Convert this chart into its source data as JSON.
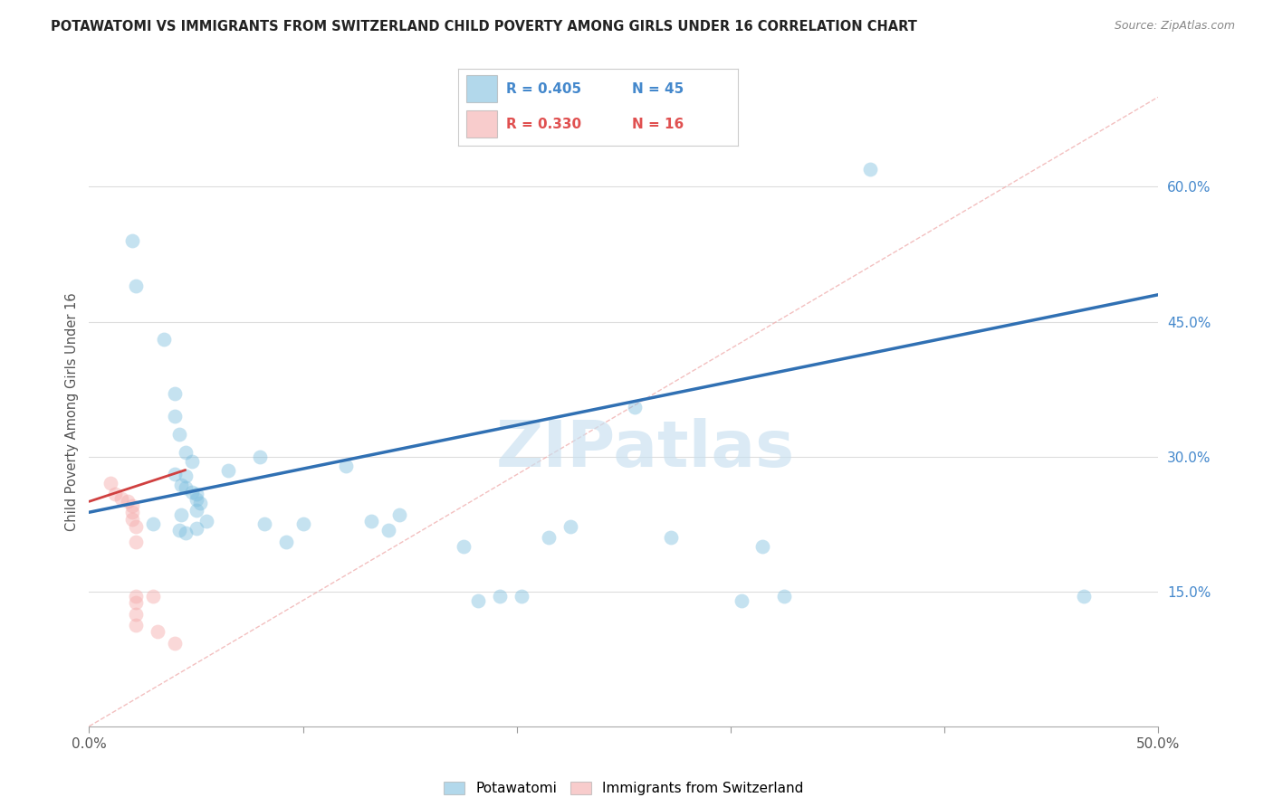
{
  "title": "POTAWATOMI VS IMMIGRANTS FROM SWITZERLAND CHILD POVERTY AMONG GIRLS UNDER 16 CORRELATION CHART",
  "source": "Source: ZipAtlas.com",
  "ylabel": "Child Poverty Among Girls Under 16",
  "xlim": [
    0.0,
    0.5
  ],
  "ylim": [
    0.0,
    0.7
  ],
  "x_ticks": [
    0.0,
    0.1,
    0.2,
    0.3,
    0.4,
    0.5
  ],
  "x_tick_labels": [
    "0.0%",
    "",
    "",
    "",
    "",
    "50.0%"
  ],
  "y_ticks_right": [
    0.15,
    0.3,
    0.45,
    0.6
  ],
  "y_tick_labels_right": [
    "15.0%",
    "30.0%",
    "45.0%",
    "60.0%"
  ],
  "legend_r1": "R = 0.405",
  "legend_n1": "N = 45",
  "legend_r2": "R = 0.330",
  "legend_n2": "N = 16",
  "blue_color": "#7fbfdf",
  "pink_color": "#f4aaaa",
  "blue_line_color": "#3070b3",
  "pink_line_color": "#d04040",
  "watermark": "ZIPatlas",
  "grid_color": "#dddddd",
  "potawatomi_points": [
    [
      0.02,
      0.54
    ],
    [
      0.022,
      0.49
    ],
    [
      0.035,
      0.43
    ],
    [
      0.04,
      0.37
    ],
    [
      0.04,
      0.345
    ],
    [
      0.042,
      0.325
    ],
    [
      0.045,
      0.305
    ],
    [
      0.048,
      0.295
    ],
    [
      0.04,
      0.28
    ],
    [
      0.045,
      0.278
    ],
    [
      0.043,
      0.268
    ],
    [
      0.045,
      0.265
    ],
    [
      0.048,
      0.26
    ],
    [
      0.05,
      0.258
    ],
    [
      0.05,
      0.252
    ],
    [
      0.052,
      0.248
    ],
    [
      0.05,
      0.24
    ],
    [
      0.043,
      0.235
    ],
    [
      0.055,
      0.228
    ],
    [
      0.03,
      0.225
    ],
    [
      0.042,
      0.218
    ],
    [
      0.045,
      0.215
    ],
    [
      0.05,
      0.22
    ],
    [
      0.065,
      0.285
    ],
    [
      0.08,
      0.3
    ],
    [
      0.082,
      0.225
    ],
    [
      0.092,
      0.205
    ],
    [
      0.1,
      0.225
    ],
    [
      0.12,
      0.29
    ],
    [
      0.132,
      0.228
    ],
    [
      0.14,
      0.218
    ],
    [
      0.145,
      0.235
    ],
    [
      0.175,
      0.2
    ],
    [
      0.182,
      0.14
    ],
    [
      0.192,
      0.145
    ],
    [
      0.202,
      0.145
    ],
    [
      0.215,
      0.21
    ],
    [
      0.225,
      0.222
    ],
    [
      0.255,
      0.355
    ],
    [
      0.272,
      0.21
    ],
    [
      0.305,
      0.14
    ],
    [
      0.315,
      0.2
    ],
    [
      0.325,
      0.145
    ],
    [
      0.365,
      0.62
    ],
    [
      0.465,
      0.145
    ]
  ],
  "switzerland_points": [
    [
      0.01,
      0.27
    ],
    [
      0.012,
      0.258
    ],
    [
      0.015,
      0.253
    ],
    [
      0.018,
      0.25
    ],
    [
      0.02,
      0.245
    ],
    [
      0.02,
      0.238
    ],
    [
      0.02,
      0.23
    ],
    [
      0.022,
      0.222
    ],
    [
      0.022,
      0.205
    ],
    [
      0.022,
      0.145
    ],
    [
      0.022,
      0.138
    ],
    [
      0.022,
      0.125
    ],
    [
      0.022,
      0.112
    ],
    [
      0.03,
      0.145
    ],
    [
      0.032,
      0.105
    ],
    [
      0.04,
      0.092
    ]
  ],
  "blue_trendline_x": [
    0.0,
    0.5
  ],
  "blue_trendline_y": [
    0.238,
    0.48
  ],
  "pink_trendline_x": [
    0.0,
    0.045
  ],
  "pink_trendline_y": [
    0.25,
    0.285
  ],
  "diag_line_x": [
    0.0,
    0.5
  ],
  "diag_line_y": [
    0.0,
    0.7
  ]
}
